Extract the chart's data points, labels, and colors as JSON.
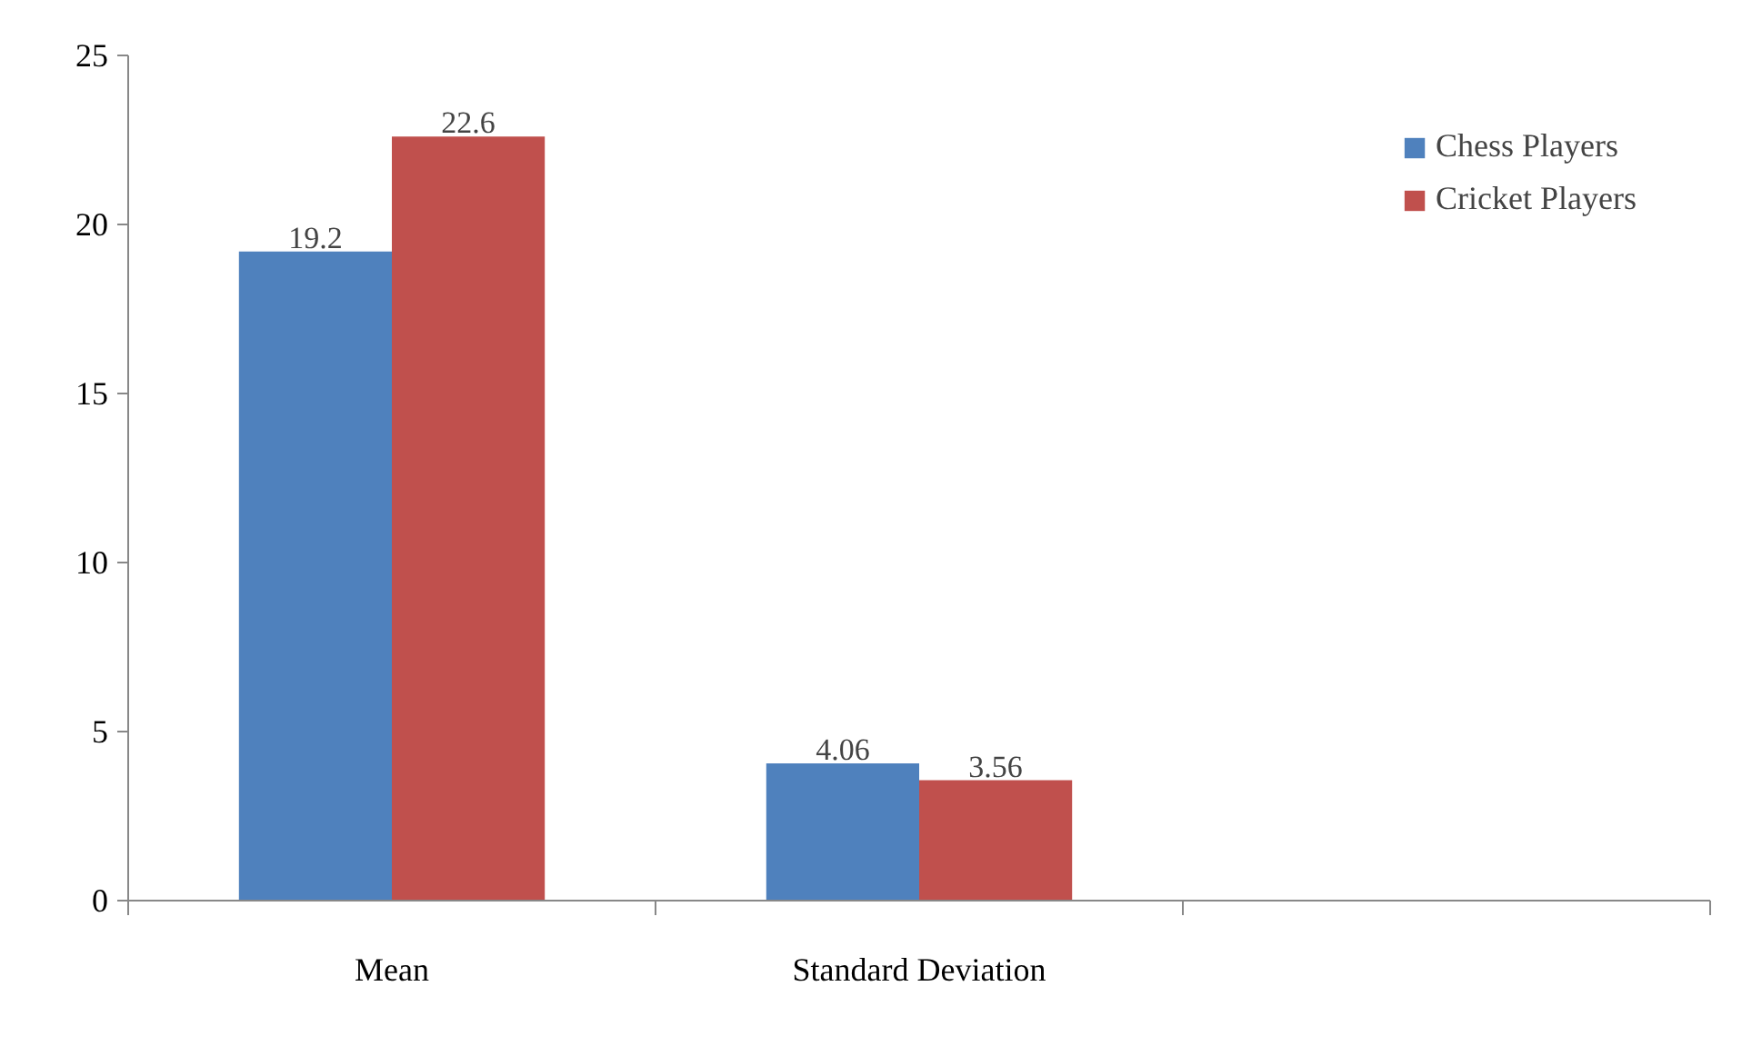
{
  "chart_data": {
    "type": "bar",
    "categories": [
      "Mean",
      "Standard Deviation",
      null
    ],
    "series": [
      {
        "name": "Chess Players",
        "color": "#4f81bd",
        "values": [
          19.2,
          4.06,
          null
        ]
      },
      {
        "name": "Cricket Players",
        "color": "#c0504d",
        "values": [
          22.6,
          3.56,
          null
        ]
      }
    ],
    "ylim": [
      0,
      25
    ],
    "yticks": [
      0,
      5,
      10,
      15,
      20,
      25
    ],
    "data_labels": true,
    "grid": false,
    "legend": "top right"
  }
}
